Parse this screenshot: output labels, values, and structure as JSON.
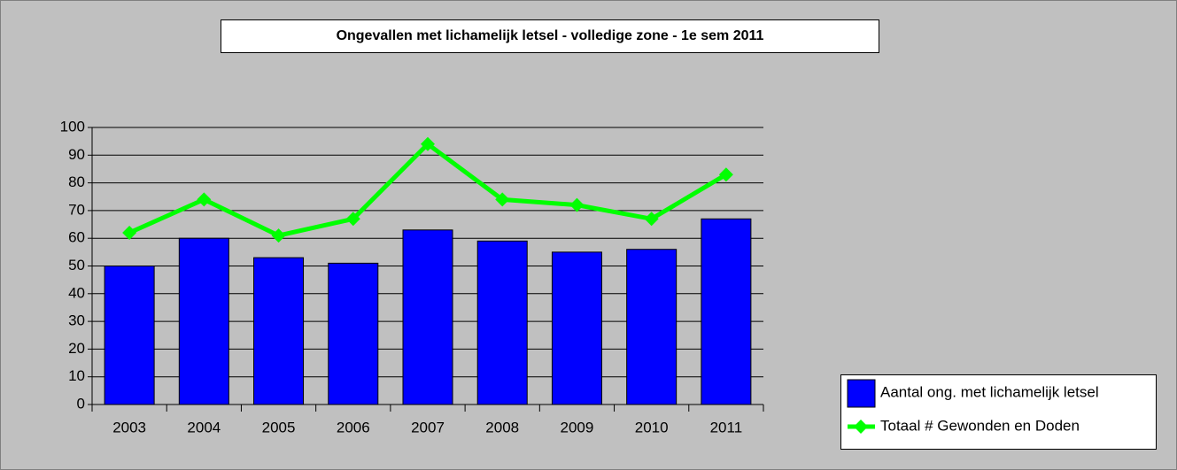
{
  "chart_data": {
    "type": "bar",
    "title": "Ongevallen met lichamelijk letsel  - volledige zone - 1e sem 2011",
    "categories": [
      "2003",
      "2004",
      "2005",
      "2006",
      "2007",
      "2008",
      "2009",
      "2010",
      "2011"
    ],
    "series": [
      {
        "name": "Aantal ong. met lichamelijk letsel",
        "type": "bar",
        "color": "#0000ff",
        "values": [
          50,
          60,
          53,
          51,
          63,
          59,
          55,
          56,
          67
        ]
      },
      {
        "name": "Totaal # Gewonden en Doden",
        "type": "line",
        "color": "#00ff00",
        "values": [
          62,
          74,
          61,
          67,
          94,
          74,
          72,
          67,
          83
        ]
      }
    ],
    "ylim": [
      0,
      100
    ],
    "yticks": [
      0,
      10,
      20,
      30,
      40,
      50,
      60,
      70,
      80,
      90,
      100
    ],
    "grid": true
  }
}
